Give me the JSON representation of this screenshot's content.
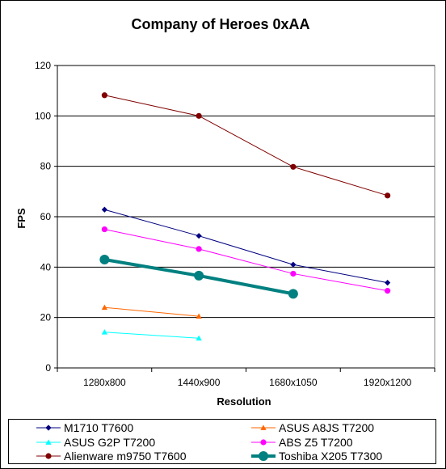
{
  "chart_data": {
    "type": "line",
    "title": "Company of Heroes 0xAA",
    "xlabel": "Resolution",
    "ylabel": "FPS",
    "categories": [
      "1280x800",
      "1440x900",
      "1680x1050",
      "1920x1200"
    ],
    "ylim": [
      0,
      120
    ],
    "yticks": [
      0,
      20,
      40,
      60,
      80,
      100,
      120
    ],
    "grid": "horizontal",
    "legend_position": "bottom",
    "series": [
      {
        "name": "M1710 T7600",
        "values": [
          62.8,
          52.4,
          41.0,
          33.8
        ],
        "color": "#000080",
        "marker": "diamond",
        "width": 1
      },
      {
        "name": "ASUS A8JS T7200",
        "values": [
          24.0,
          20.5,
          null,
          null
        ],
        "color": "#ff6600",
        "marker": "triangle",
        "width": 1
      },
      {
        "name": "ASUS G2P T7200",
        "values": [
          14.2,
          11.8,
          null,
          null
        ],
        "color": "#00ffff",
        "marker": "triangle",
        "width": 1
      },
      {
        "name": "ABS Z5 T7200",
        "values": [
          55.0,
          47.2,
          37.4,
          30.6
        ],
        "color": "#ff00ff",
        "marker": "circle",
        "width": 1
      },
      {
        "name": "Alienware m9750 T7600",
        "values": [
          108.2,
          100.0,
          79.8,
          68.4
        ],
        "color": "#800000",
        "marker": "circle",
        "width": 1
      },
      {
        "name": "Toshiba X205 T7300",
        "values": [
          43.0,
          36.6,
          29.4,
          null
        ],
        "color": "#008080",
        "marker": "circle",
        "width": 4
      }
    ]
  }
}
